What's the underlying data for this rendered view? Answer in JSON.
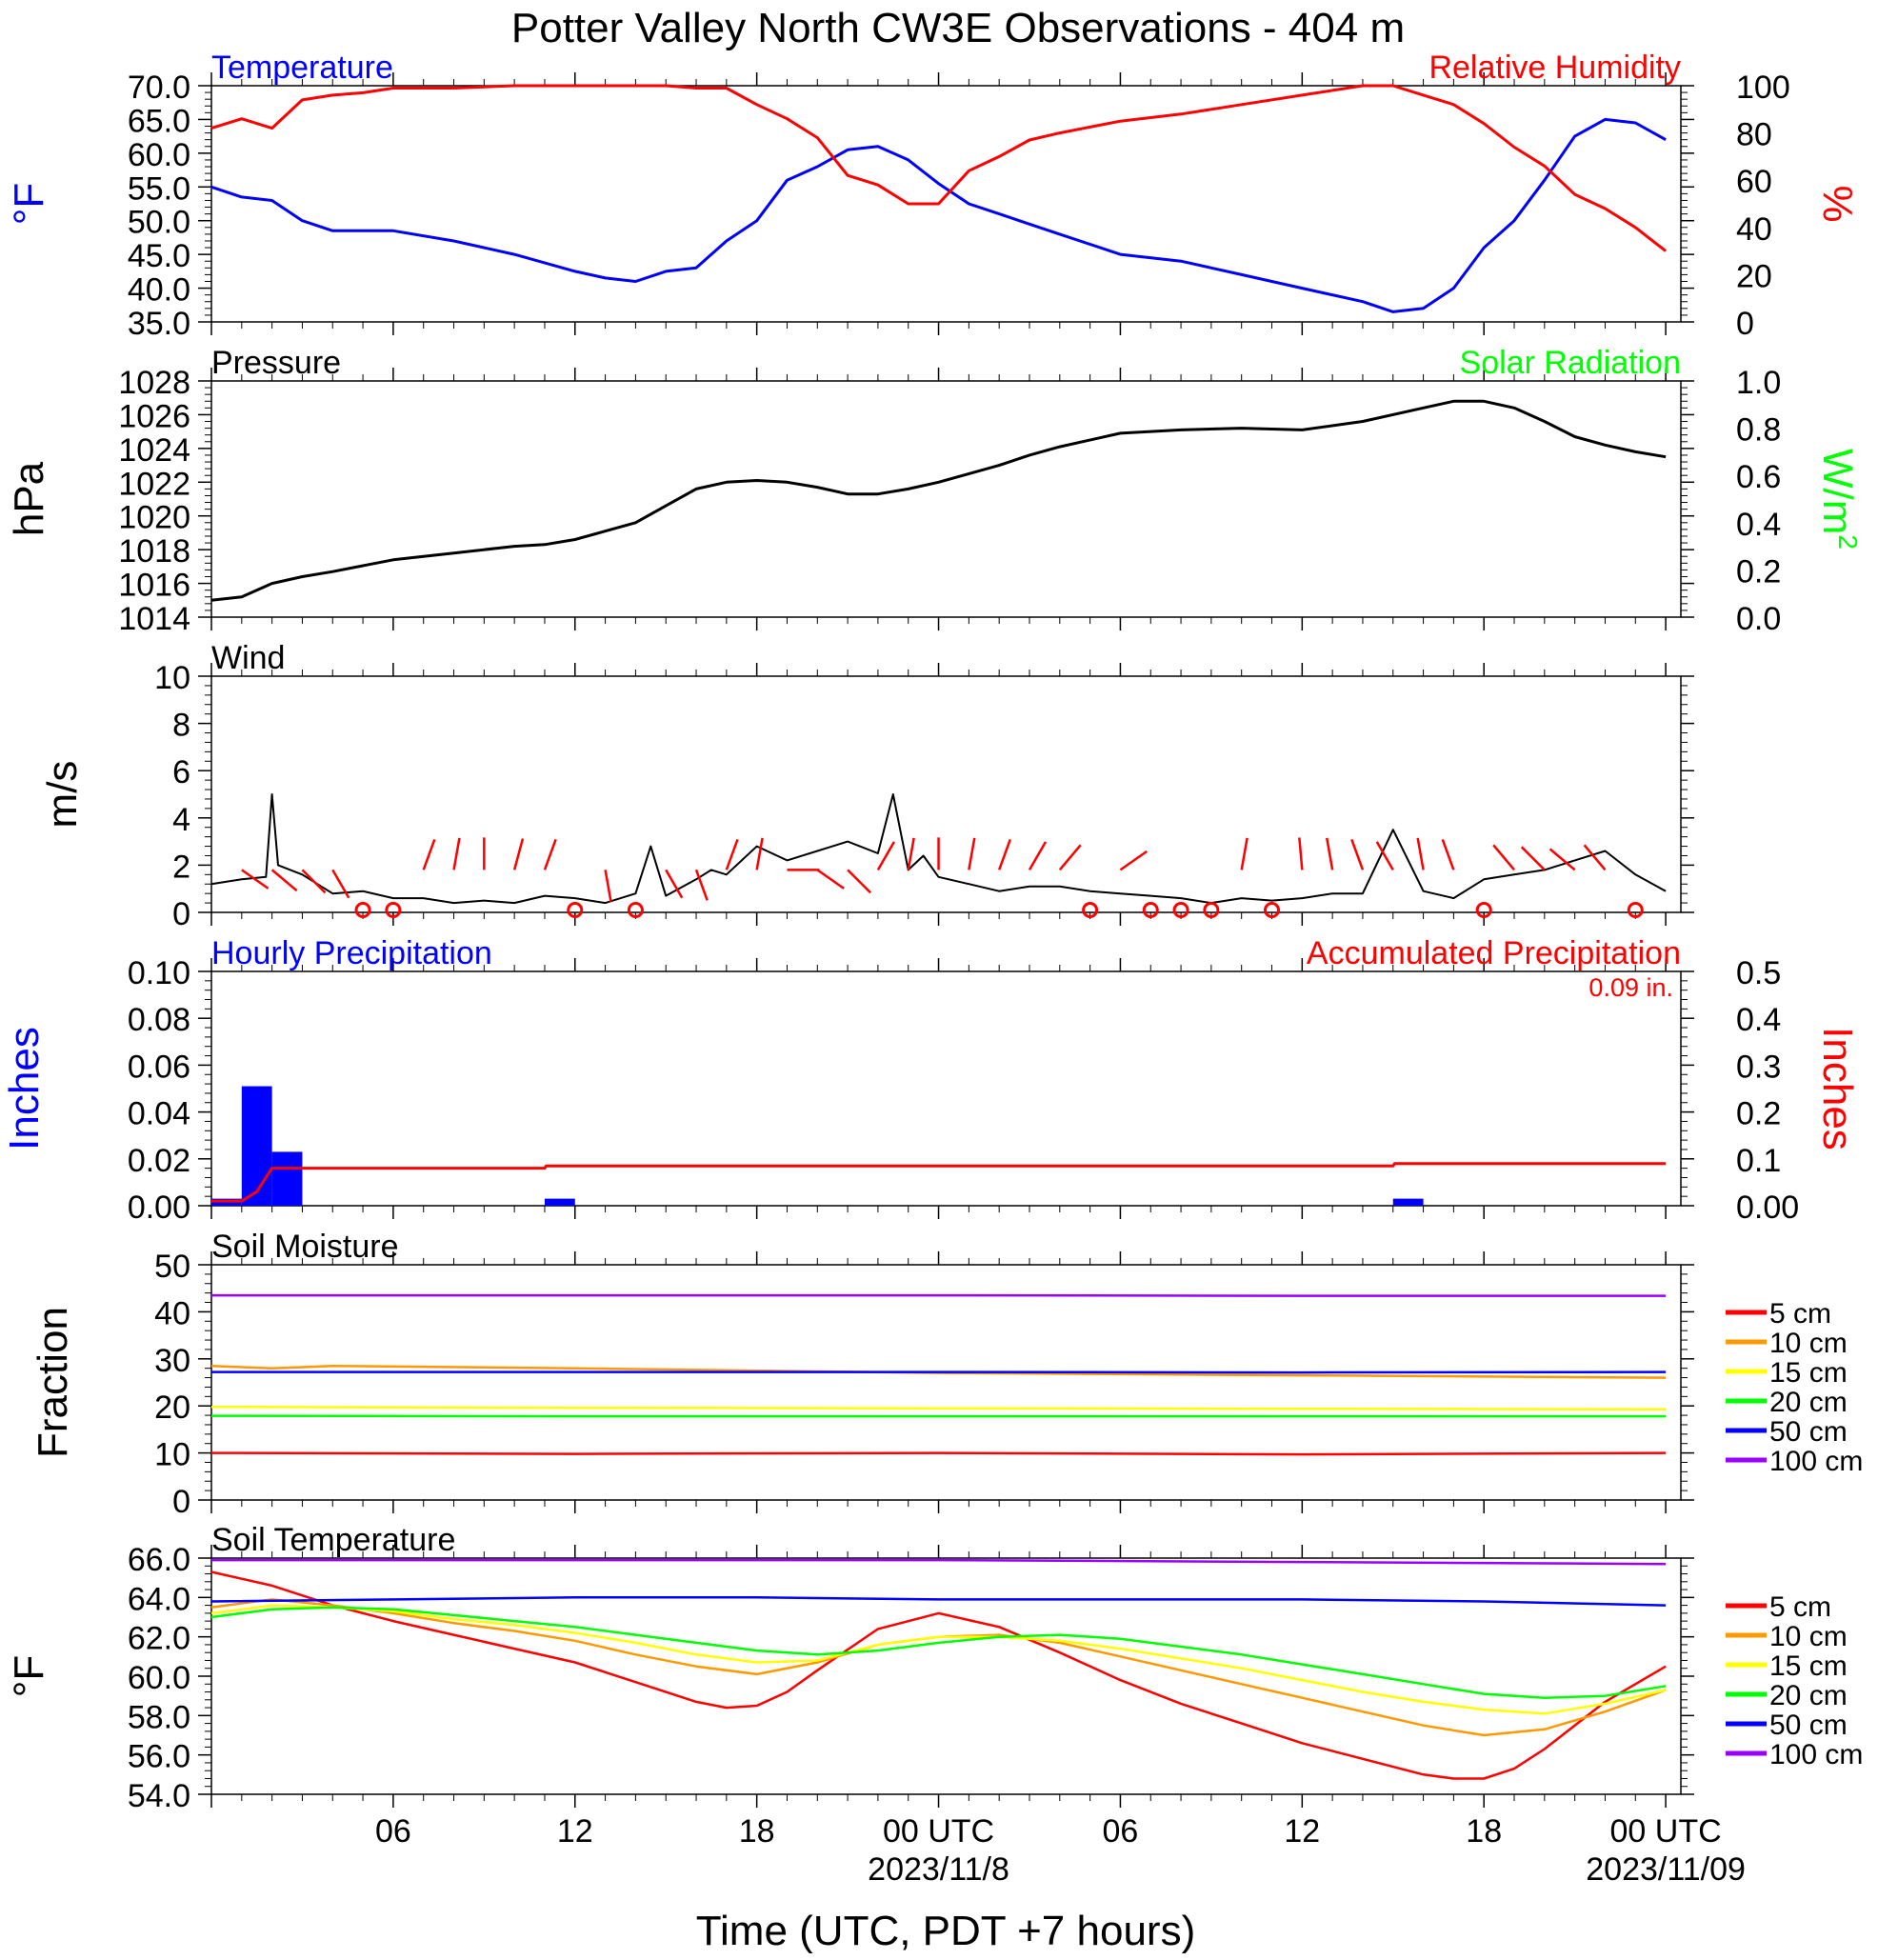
{
  "title": "Potter Valley North CW3E Observations - 404 m",
  "x_axis": {
    "title": "Time (UTC, PDT +7 hours)",
    "ticks": [
      {
        "hour": 6,
        "label": "06",
        "date": ""
      },
      {
        "hour": 12,
        "label": "12",
        "date": ""
      },
      {
        "hour": 18,
        "label": "18",
        "date": ""
      },
      {
        "hour": 24,
        "label": "00 UTC",
        "date": "2023/11/8"
      },
      {
        "hour": 30,
        "label": "06",
        "date": ""
      },
      {
        "hour": 36,
        "label": "12",
        "date": ""
      },
      {
        "hour": 42,
        "label": "18",
        "date": ""
      },
      {
        "hour": 48,
        "label": "00 UTC",
        "date": "2023/11/09"
      }
    ]
  },
  "chart_data": [
    {
      "type": "line",
      "panel": "temperature_rh",
      "title_left": "Temperature",
      "title_right": "Relative Humidity",
      "ylabel_left": "°F",
      "ylabel_right": "%",
      "ylim_left": [
        35,
        70
      ],
      "ylim_right": [
        0,
        100
      ],
      "yticks_left": [
        "70.0",
        "65.0",
        "60.0",
        "55.0",
        "50.0",
        "45.0",
        "40.0",
        "35.0"
      ],
      "yticks_right": [
        "100",
        "80",
        "60",
        "40",
        "20",
        "0"
      ],
      "colors": {
        "left": "#0000ff",
        "right": "#ff0000"
      },
      "series": [
        {
          "name": "Temperature",
          "axis": "left",
          "color": "#0000ff",
          "x": [
            0,
            1,
            2,
            3,
            4,
            6,
            8,
            10,
            12,
            13,
            14,
            15,
            16,
            17,
            18,
            19,
            20,
            21,
            22,
            23,
            24,
            25,
            26,
            27,
            28,
            30,
            32,
            34,
            36,
            38,
            39,
            40,
            41,
            42,
            43,
            44,
            45,
            46,
            47,
            48
          ],
          "y": [
            55,
            53.5,
            53,
            50,
            48.5,
            48.5,
            47,
            45,
            42.5,
            41.5,
            41,
            42.5,
            43,
            47,
            50,
            56,
            58,
            60.5,
            61,
            59,
            55.5,
            52.5,
            51,
            49.5,
            48,
            45,
            44,
            42,
            40,
            38,
            36.5,
            37,
            40,
            46,
            50,
            56,
            62.5,
            65,
            64.5,
            62
          ]
        },
        {
          "name": "Relative Humidity",
          "axis": "right",
          "color": "#ff0000",
          "x": [
            0,
            1,
            2,
            3,
            4,
            5,
            6,
            8,
            10,
            12,
            14,
            15,
            16,
            17,
            18,
            19,
            20,
            21,
            22,
            23,
            24,
            25,
            26,
            27,
            28,
            30,
            32,
            34,
            36,
            38,
            39,
            40,
            41,
            42,
            43,
            44,
            45,
            46,
            47,
            48
          ],
          "y": [
            82,
            86,
            82,
            94,
            96,
            97,
            99,
            99,
            100,
            100,
            100,
            100,
            99,
            99,
            92,
            86,
            78,
            62,
            58,
            50,
            50,
            64,
            70,
            77,
            80,
            85,
            88,
            92,
            96,
            100,
            100,
            96,
            92,
            84,
            74,
            66,
            54,
            48,
            40,
            30
          ]
        }
      ]
    },
    {
      "type": "line",
      "panel": "pressure_solar",
      "title_left": "Pressure",
      "title_right": "Solar Radiation",
      "ylabel_left": "hPa",
      "ylabel_right_base": "W/m",
      "ylabel_right_sup": "2",
      "ylim_left": [
        1014,
        1028
      ],
      "ylim_right": [
        0.0,
        1.0
      ],
      "yticks_left": [
        "1028",
        "1026",
        "1024",
        "1022",
        "1020",
        "1018",
        "1016",
        "1014"
      ],
      "yticks_right": [
        "1.0",
        "0.8",
        "0.6",
        "0.4",
        "0.2",
        "0.0"
      ],
      "colors": {
        "left": "#000000",
        "right": "#00ff00"
      },
      "series": [
        {
          "name": "Pressure",
          "axis": "left",
          "color": "#000000",
          "x": [
            0,
            1,
            2,
            3,
            4,
            6,
            8,
            10,
            11,
            12,
            14,
            15,
            16,
            17,
            18,
            19,
            20,
            21,
            22,
            23,
            24,
            25,
            26,
            27,
            28,
            30,
            32,
            34,
            36,
            38,
            40,
            41,
            42,
            43,
            44,
            45,
            46,
            47,
            48
          ],
          "y": [
            1015,
            1015.2,
            1016,
            1016.4,
            1016.7,
            1017.4,
            1017.8,
            1018.2,
            1018.3,
            1018.6,
            1019.6,
            1020.6,
            1021.6,
            1022,
            1022.1,
            1022,
            1021.7,
            1021.3,
            1021.3,
            1021.6,
            1022,
            1022.5,
            1023,
            1023.6,
            1024.1,
            1024.9,
            1025.1,
            1025.2,
            1025.1,
            1025.6,
            1026.4,
            1026.8,
            1026.8,
            1026.4,
            1025.6,
            1024.7,
            1024.2,
            1023.8,
            1023.5
          ]
        }
      ]
    },
    {
      "type": "line",
      "panel": "wind",
      "title_left": "Wind",
      "ylabel_left": "m/s",
      "ylim": [
        0,
        10
      ],
      "yticks": [
        "10",
        "8",
        "6",
        "4",
        "2",
        "0"
      ],
      "colors": {
        "speed": "#000000",
        "barbs": "#ff0000"
      },
      "series": [
        {
          "name": "Wind speed",
          "color": "#000000",
          "x": [
            0,
            1,
            1.8,
            2,
            2.2,
            3,
            4,
            5,
            6,
            7,
            8,
            9,
            10,
            11,
            12,
            13,
            14,
            14.5,
            15,
            16,
            16.5,
            17,
            18,
            19,
            20,
            21,
            22,
            22.5,
            23,
            23.5,
            24,
            25,
            26,
            27,
            28,
            29,
            30,
            31,
            32,
            33,
            34,
            35,
            36,
            37,
            38,
            39,
            40,
            41,
            42,
            43,
            44,
            45,
            46,
            47,
            48
          ],
          "y": [
            1.2,
            1.4,
            1.5,
            5,
            2,
            1.6,
            0.8,
            0.9,
            0.6,
            0.6,
            0.4,
            0.5,
            0.4,
            0.7,
            0.6,
            0.4,
            0.8,
            2.8,
            0.7,
            1.4,
            1.8,
            1.6,
            2.8,
            2.2,
            2.6,
            3,
            2.5,
            5,
            1.8,
            2.4,
            1.5,
            1.2,
            0.9,
            1.1,
            1.1,
            0.9,
            0.8,
            0.7,
            0.6,
            0.4,
            0.6,
            0.5,
            0.6,
            0.8,
            0.8,
            3.5,
            0.9,
            0.6,
            1.4,
            1.6,
            1.8,
            2.2,
            2.6,
            1.6,
            0.9
          ]
        }
      ],
      "calm_markers_hours": [
        5,
        6,
        12,
        14,
        29,
        31,
        32,
        33,
        35,
        42,
        47
      ]
    },
    {
      "type": "bar",
      "panel": "precipitation",
      "title_left": "Hourly Precipitation",
      "title_right": "Accumulated Precipitation",
      "total_label": "0.09 in.",
      "ylabel_left": "Inches",
      "ylabel_right": "Inches",
      "ylim_left": [
        0,
        0.1
      ],
      "ylim_right": [
        0,
        0.5
      ],
      "yticks_left": [
        "0.10",
        "0.08",
        "0.06",
        "0.04",
        "0.02",
        "0.00"
      ],
      "yticks_right": [
        "0.5",
        "0.4",
        "0.3",
        "0.2",
        "0.1",
        "0.00"
      ],
      "colors": {
        "bars": "#0000ff",
        "accum": "#ff0000"
      },
      "bars": {
        "hours": [
          0,
          1,
          2,
          11,
          39
        ],
        "values": [
          0.003,
          0.051,
          0.023,
          0.003,
          0.003
        ]
      },
      "accumulated": {
        "x": [
          0,
          1,
          1.5,
          2,
          2.5,
          11,
          11.05,
          39,
          39.05,
          48
        ],
        "y": [
          0.01,
          0.01,
          0.03,
          0.08,
          0.08,
          0.08,
          0.085,
          0.085,
          0.09,
          0.09
        ]
      }
    },
    {
      "type": "line",
      "panel": "soil_moisture",
      "title_left": "Soil Moisture",
      "ylabel_left": "Fraction",
      "ylim": [
        0,
        50
      ],
      "yticks": [
        "50",
        "40",
        "30",
        "20",
        "10",
        "0"
      ],
      "series": [
        {
          "name": "5 cm",
          "color": "#ff0000",
          "x": [
            0,
            12,
            24,
            36,
            48
          ],
          "y": [
            10,
            9.8,
            10,
            9.7,
            10
          ]
        },
        {
          "name": "10 cm",
          "color": "#ff9900",
          "x": [
            0,
            2,
            4,
            12,
            24,
            36,
            48
          ],
          "y": [
            28.5,
            28,
            28.5,
            28,
            27,
            26.5,
            26
          ]
        },
        {
          "name": "15 cm",
          "color": "#ffff00",
          "x": [
            0,
            12,
            24,
            36,
            48
          ],
          "y": [
            19.8,
            19.6,
            19.5,
            19.4,
            19.3
          ]
        },
        {
          "name": "20 cm",
          "color": "#00ff00",
          "x": [
            0,
            12,
            24,
            36,
            48
          ],
          "y": [
            17.9,
            17.8,
            17.8,
            17.8,
            17.8
          ]
        },
        {
          "name": "50 cm",
          "color": "#0000ff",
          "x": [
            0,
            12,
            24,
            36,
            48
          ],
          "y": [
            27.2,
            27.2,
            27.2,
            27.1,
            27.2
          ]
        },
        {
          "name": "100 cm",
          "color": "#9900ff",
          "x": [
            0,
            12,
            24,
            36,
            48
          ],
          "y": [
            43.5,
            43.5,
            43.5,
            43.4,
            43.4
          ]
        }
      ]
    },
    {
      "type": "line",
      "panel": "soil_temperature",
      "title_left": "Soil Temperature",
      "ylabel_left": "°F",
      "ylim": [
        54,
        66
      ],
      "yticks": [
        "66.0",
        "64.0",
        "62.0",
        "60.0",
        "58.0",
        "56.0",
        "54.0"
      ],
      "series": [
        {
          "name": "5 cm",
          "color": "#ff0000",
          "x": [
            0,
            2,
            4,
            6,
            8,
            10,
            12,
            14,
            16,
            17,
            18,
            19,
            20,
            22,
            24,
            26,
            28,
            30,
            32,
            34,
            36,
            38,
            40,
            41,
            42,
            43,
            44,
            46,
            48
          ],
          "y": [
            65.3,
            64.6,
            63.6,
            62.8,
            62.1,
            61.4,
            60.7,
            59.7,
            58.7,
            58.4,
            58.5,
            59.2,
            60.3,
            62.4,
            63.2,
            62.5,
            61.2,
            59.8,
            58.6,
            57.6,
            56.6,
            55.8,
            55.0,
            54.8,
            54.8,
            55.3,
            56.3,
            58.7,
            60.5
          ]
        },
        {
          "name": "10 cm",
          "color": "#ff9900",
          "x": [
            0,
            2,
            4,
            6,
            8,
            10,
            12,
            14,
            16,
            18,
            20,
            22,
            24,
            26,
            28,
            30,
            32,
            34,
            36,
            38,
            40,
            42,
            44,
            46,
            48
          ],
          "y": [
            63.5,
            63.9,
            63.6,
            63.2,
            62.7,
            62.3,
            61.8,
            61.1,
            60.5,
            60.1,
            60.7,
            61.6,
            62.0,
            62.1,
            61.7,
            61.0,
            60.3,
            59.6,
            58.9,
            58.2,
            57.5,
            57.0,
            57.3,
            58.2,
            59.3
          ]
        },
        {
          "name": "15 cm",
          "color": "#ffff00",
          "x": [
            0,
            2,
            4,
            6,
            8,
            10,
            12,
            14,
            16,
            18,
            20,
            22,
            24,
            26,
            28,
            30,
            32,
            34,
            36,
            38,
            40,
            42,
            44,
            46,
            48
          ],
          "y": [
            63.2,
            63.6,
            63.5,
            63.3,
            62.9,
            62.6,
            62.2,
            61.7,
            61.1,
            60.7,
            60.8,
            61.6,
            62.0,
            62.0,
            61.8,
            61.4,
            60.9,
            60.4,
            59.8,
            59.2,
            58.7,
            58.3,
            58.1,
            58.6,
            59.3
          ]
        },
        {
          "name": "20 cm",
          "color": "#00ff00",
          "x": [
            0,
            2,
            4,
            6,
            8,
            10,
            12,
            14,
            16,
            18,
            20,
            22,
            24,
            26,
            28,
            30,
            32,
            34,
            36,
            38,
            40,
            42,
            44,
            46,
            48
          ],
          "y": [
            63.0,
            63.4,
            63.5,
            63.4,
            63.1,
            62.8,
            62.5,
            62.1,
            61.7,
            61.3,
            61.1,
            61.3,
            61.7,
            62.0,
            62.1,
            61.9,
            61.5,
            61.1,
            60.6,
            60.1,
            59.6,
            59.1,
            58.9,
            59.0,
            59.5
          ]
        },
        {
          "name": "50 cm",
          "color": "#0000ff",
          "x": [
            0,
            12,
            18,
            24,
            30,
            36,
            42,
            48
          ],
          "y": [
            63.8,
            64.0,
            64.0,
            63.9,
            63.9,
            63.9,
            63.8,
            63.6
          ]
        },
        {
          "name": "100 cm",
          "color": "#9900ff",
          "x": [
            0,
            12,
            24,
            36,
            48
          ],
          "y": [
            65.9,
            65.9,
            65.9,
            65.8,
            65.7
          ]
        }
      ]
    }
  ]
}
